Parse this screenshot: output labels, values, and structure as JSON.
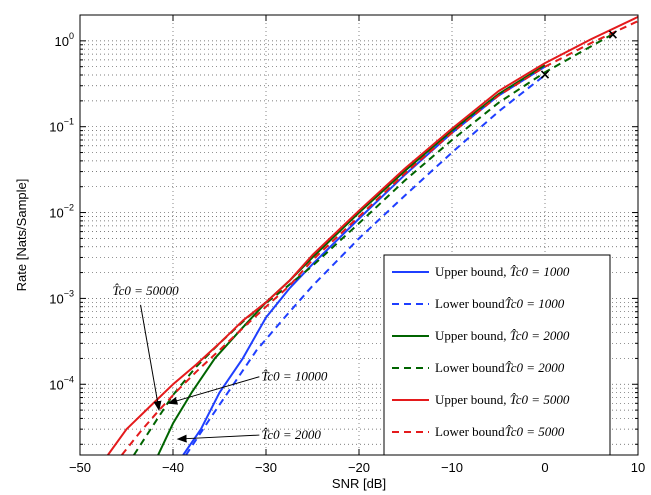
{
  "chart_data": {
    "type": "line",
    "xlabel": "SNR [dB]",
    "ylabel": "Rate [Nats/Sample]",
    "xscale": "linear",
    "yscale": "log",
    "xlim": [
      -50,
      10
    ],
    "ylim": [
      1.5e-05,
      2.0
    ],
    "grid": true,
    "legend_position": "bottom-right",
    "xticks": [
      {
        "value": -50,
        "label": "−50"
      },
      {
        "value": -40,
        "label": "−40"
      },
      {
        "value": -30,
        "label": "−30"
      },
      {
        "value": -20,
        "label": "−20"
      },
      {
        "value": -10,
        "label": "−10"
      },
      {
        "value": 0,
        "label": "0"
      },
      {
        "value": 10,
        "label": "10"
      }
    ],
    "yticks": [
      {
        "exp": -4,
        "base": "10",
        "sup": "−4"
      },
      {
        "exp": -3,
        "base": "10",
        "sup": "−3"
      },
      {
        "exp": -2,
        "base": "10",
        "sup": "−2"
      },
      {
        "exp": -1,
        "base": "10",
        "sup": "−1"
      },
      {
        "exp": 0,
        "base": "10",
        "sup": "0"
      }
    ],
    "series": [
      {
        "name": "Upper bound, T̂c0 = 1000",
        "color": "#1f3fff",
        "dash": false,
        "x": [
          -38.9,
          -37,
          -35,
          -32.5,
          -30,
          -27.5,
          -25,
          -20,
          -15,
          -10,
          -5,
          0
        ],
        "y": [
          1.5e-05,
          3e-05,
          8e-05,
          0.0002,
          0.0006,
          0.0013,
          0.0025,
          0.0085,
          0.028,
          0.085,
          0.23,
          0.5
        ]
      },
      {
        "name": "Lower bound T̂c0 = 1000",
        "color": "#1f3fff",
        "dash": true,
        "x": [
          -38.6,
          -36,
          -33.5,
          -31,
          -28,
          -25,
          -20,
          -15,
          -10,
          -5,
          0
        ],
        "y": [
          1.5e-05,
          4e-05,
          0.0001,
          0.00025,
          0.0006,
          0.0014,
          0.005,
          0.016,
          0.05,
          0.15,
          0.4
        ]
      },
      {
        "name": "Upper bound, T̂c0 = 2000",
        "color": "#006400",
        "dash": false,
        "x": [
          -41.6,
          -40,
          -38,
          -35.5,
          -33,
          -30,
          -27.5,
          -25,
          -20,
          -15,
          -10,
          -5,
          0
        ],
        "y": [
          1.5e-05,
          3.5e-05,
          8e-05,
          0.0002,
          0.0004,
          0.0009,
          0.0016,
          0.003,
          0.01,
          0.031,
          0.09,
          0.24,
          0.52
        ]
      },
      {
        "name": "Lower bound T̂c0 = 2000",
        "color": "#006400",
        "dash": true,
        "x": [
          -44.2,
          -42,
          -40,
          -37.5,
          -35,
          -32,
          -28,
          -25,
          -20,
          -15,
          -10,
          -5,
          0,
          7.3
        ],
        "y": [
          1.5e-05,
          3.5e-05,
          7.5e-05,
          0.00016,
          0.0003,
          0.0006,
          0.0013,
          0.0024,
          0.0075,
          0.024,
          0.07,
          0.19,
          0.43,
          1.2
        ]
      },
      {
        "name": "Upper bound, T̂c0 = 5000",
        "color": "#e41a1c",
        "dash": false,
        "x": [
          -47,
          -45,
          -42.5,
          -40,
          -37.5,
          -35,
          -32.5,
          -30,
          -27.5,
          -25,
          -20,
          -15,
          -10,
          -5,
          0,
          5,
          10
        ],
        "y": [
          1.5e-05,
          3e-05,
          5.5e-05,
          0.0001,
          0.00017,
          0.0003,
          0.00055,
          0.0009,
          0.0016,
          0.0032,
          0.0105,
          0.033,
          0.095,
          0.26,
          0.55,
          1.05,
          1.9
        ]
      },
      {
        "name": "Lower bound T̂c0 = 5000",
        "color": "#e41a1c",
        "dash": true,
        "x": [
          -45.5,
          -43.5,
          -41.5,
          -39.5,
          -37.5,
          -35,
          -32.5,
          -30,
          -27.5,
          -25,
          -20,
          -15,
          -10,
          -5,
          0,
          5,
          10
        ],
        "y": [
          1.5e-05,
          2.8e-05,
          5e-05,
          8.5e-05,
          0.00014,
          0.00025,
          0.00045,
          0.0008,
          0.0014,
          0.0028,
          0.009,
          0.029,
          0.085,
          0.23,
          0.5,
          0.95,
          1.7
        ]
      }
    ],
    "markers": [
      {
        "x": 0,
        "y": 0.41,
        "symbol": "×"
      },
      {
        "x": 7.3,
        "y": 1.2,
        "symbol": "×"
      }
    ],
    "legend": [
      {
        "text": "Upper bound, ",
        "math": "T̂c0 = 1000",
        "color": "#1f3fff",
        "dash": false
      },
      {
        "text": "Lower bound",
        "math": "T̂c0 = 1000",
        "color": "#1f3fff",
        "dash": true
      },
      {
        "text": "Upper bound, ",
        "math": "T̂c0 = 2000",
        "color": "#006400",
        "dash": false
      },
      {
        "text": "Lower bound",
        "math": "T̂c0 = 2000",
        "color": "#006400",
        "dash": true
      },
      {
        "text": "Upper bound, ",
        "math": "T̂c0 = 5000",
        "color": "#e41a1c",
        "dash": false
      },
      {
        "text": "Lower bound",
        "math": "T̂c0 = 5000",
        "color": "#e41a1c",
        "dash": true
      }
    ],
    "annotations": [
      {
        "label": "T̂c0 = 50000",
        "arrow_to": {
          "x": -41.5,
          "y": 5e-05
        },
        "text_at": {
          "x": -46.5,
          "y": 0.0011
        }
      },
      {
        "label": "T̂c0 = 10000",
        "arrow_to": {
          "x": -40.5,
          "y": 6e-05
        },
        "text_at": {
          "x": -30.5,
          "y": 0.00011
        }
      },
      {
        "label": "T̂c0 = 2000",
        "arrow_to": {
          "x": -39.5,
          "y": 2.3e-05
        },
        "text_at": {
          "x": -30.5,
          "y": 2.3e-05
        }
      }
    ]
  }
}
